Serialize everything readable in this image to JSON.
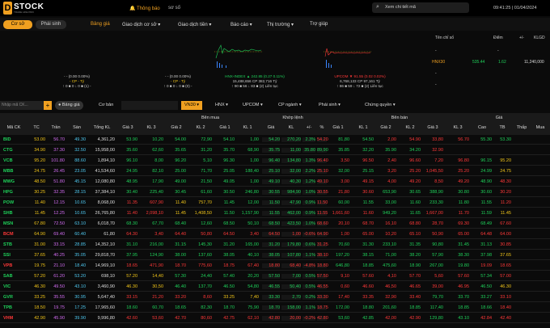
{
  "header": {
    "logo_letter": "D",
    "logo_text": "STOCK",
    "logo_sub": "TRADE LIKE PRO",
    "notice": "Thông báo",
    "notice2": "sơ số",
    "search_placeholder": "Xem chi tiết mã",
    "clock": "09:41:25 | 01/04/2024"
  },
  "nav": {
    "tab_active": "Cơ sở",
    "tab_other": "Phái sinh",
    "menus": [
      "Bảng giá",
      "Giao dịch cơ sở ▾",
      "Giao dịch tiền ▾",
      "Báo cáo ▾",
      "Thị trường ▾",
      "Trợ giúp"
    ]
  },
  "indices": [
    {
      "l1": "- - (0.00 0.00%)",
      "l2": "- CP - Tỷ",
      "l3": "↑ 0 ■ 0 ↓ 0 ■ (1) -"
    },
    {
      "l1": "- - (0.00 0.00%)",
      "l2": "- CP - Tỷ",
      "l3": "↑ 0 ■ 0 ↓ 0 ■ (0) -"
    },
    {
      "name": "HNX-INDEX",
      "l1": "HNX-INDEX ▲ 242.85 (0.27 0.11%)",
      "l2": "15,488,656 CP 382,716 Tỷ",
      "l3": "↑ 90 ■ 56 ↓ 83 ■ (2) Liên tục"
    },
    {
      "name": "UPCOM",
      "l1": "UPCOM ▼ 91.55 (0.02 0.02%)",
      "l2": "6,768,133 CP 97,161 Tỷ",
      "l3": "↑ 86 ■ 59 ↓ 72 ■ (2) Liên tục"
    }
  ],
  "side_table": {
    "headers": [
      "Tên chỉ số",
      "Điểm",
      "+/-",
      "KLGD"
    ],
    "rows": [
      {
        "name": "-",
        "point": "-",
        "chg": "-",
        "vol": "-"
      },
      {
        "name": "HNX30",
        "point": "535.44",
        "chg": "1.62",
        "vol": "11,240,000"
      },
      {
        "name": "-",
        "point": "-",
        "chg": "-",
        "vol": "-"
      },
      {
        "name": "-",
        "point": "-",
        "chg": "-",
        "vol": "-"
      }
    ]
  },
  "filterbar": {
    "input_placeholder": "Nhập mã CK...",
    "btn_board": "Bảng giá",
    "btn_basic": "Cơ bản",
    "dropdowns": [
      "VN30 ▾",
      "HNX ▾",
      "UPCOM ▾",
      "CP ngành ▾",
      "Phái sinh ▾",
      "Chứng quyền ▾"
    ]
  },
  "grid": {
    "groups": {
      "buy": "Bên mua",
      "match": "Khớp lệnh",
      "sell": "Bên bán",
      "price": "Giá"
    },
    "cols": [
      "Mã CK",
      "TC",
      "Trần",
      "Sàn",
      "Tổng KL",
      "Giá 3",
      "KL 3",
      "Giá 2",
      "KL 2",
      "Giá 1",
      "KL 1",
      "Giá",
      "KL",
      "+/-",
      "%",
      "Giá 1",
      "KL 1",
      "Giá 2",
      "KL 2",
      "Giá 3",
      "KL 3",
      "Cao",
      "TB",
      "Thấp",
      "Mua"
    ],
    "rows": [
      [
        "BID",
        "53.00",
        "56.70",
        "49.30",
        "4,361,20",
        "53.90",
        "10,20",
        "54.00",
        "72,90",
        "54.10",
        "1,00",
        "54.20",
        "270,20",
        "2.3%",
        "54.20",
        "81,80",
        "54.50",
        "2,00",
        "54.90",
        "33,80",
        "56.70",
        "55.30",
        "53.30"
      ],
      [
        "CTG",
        "34.90",
        "37.30",
        "32.50",
        "15,958,00",
        "35.60",
        "62,60",
        "35.65",
        "31,20",
        "35.70",
        "68,90",
        "35.75",
        "11,00",
        "35.80",
        "89,90",
        "35.85",
        "32,20",
        "35.90",
        "34.20",
        "32.90"
      ],
      [
        "VCB",
        "95.20",
        "101.80",
        "88.60",
        "1,894,10",
        "96.10",
        "8,00",
        "96.20",
        "5,10",
        "96.30",
        "1,00",
        "96.40",
        "134,80",
        "1.3%",
        "96.40",
        "3,50",
        "96.50",
        "2,40",
        "96.60",
        "7,20",
        "96.80",
        "96.15",
        "95.20"
      ],
      [
        "MBB",
        "24.75",
        "26.45",
        "23.05",
        "41,534,60",
        "24.95",
        "82,10",
        "25.00",
        "71,70",
        "25.05",
        "188,40",
        "25.10",
        "32,00",
        "2.2%",
        "25.10",
        "32,00",
        "25.15",
        "3,20",
        "25.20",
        "1,045,50",
        "25.20",
        "24.99",
        "24.75"
      ],
      [
        "MWG",
        "48.50",
        "51.80",
        "45.15",
        "12,080,80",
        "48.95",
        "17,90",
        "49.00",
        "21,50",
        "49.05",
        "1,00",
        "49.10",
        "40,30",
        "1.2%",
        "49.10",
        "3,00",
        "49.15",
        "4,00",
        "49.20",
        "8,50",
        "49.20",
        "48.90",
        "48.30"
      ],
      [
        "HPG",
        "30.25",
        "32.35",
        "28.15",
        "37,384,10",
        "30.40",
        "225,40",
        "30.45",
        "61,60",
        "30.50",
        "246,80",
        "30.55",
        "984,90",
        "1.0%",
        "30.55",
        "21,80",
        "30.60",
        "653,90",
        "30.65",
        "388,90",
        "30.80",
        "30.60",
        "30.20"
      ],
      [
        "POW",
        "11.40",
        "12.15",
        "10.65",
        "8,068,00",
        "11.35",
        "607,90",
        "11.40",
        "757,70",
        "11.45",
        "12,00",
        "11.50",
        "47,90",
        "0.9%",
        "11.50",
        "60,00",
        "11.55",
        "33,00",
        "11.60",
        "233,30",
        "11.80",
        "11.55",
        "11.20"
      ],
      [
        "SHB",
        "11.45",
        "12.25",
        "10.65",
        "26,765,80",
        "11.40",
        "2,098,10",
        "11.45",
        "1,408,50",
        "11.50",
        "1,157,90",
        "11.55",
        "462,00",
        "0.9%",
        "11.55",
        "1,661,60",
        "11.60",
        "949,20",
        "11.65",
        "1,667,00",
        "11.70",
        "11.59",
        "11.45"
      ],
      [
        "MSN",
        "67.80",
        "72.50",
        "63.10",
        "6,018,70",
        "68.30",
        "67,70",
        "68.40",
        "12,60",
        "68.50",
        "50,10",
        "68.50",
        "423,50",
        "1.0%",
        "68.60",
        "20,10",
        "68.70",
        "16,10",
        "68.80",
        "28,70",
        "69.30",
        "68.49",
        "67.60"
      ],
      [
        "BCM",
        "64.90",
        "69.40",
        "60.40",
        "61,80",
        "64.30",
        "3,40",
        "64.40",
        "50,80",
        "64.50",
        "3,40",
        "64.50",
        "1,00",
        "-0.6%",
        "64.90",
        "1,00",
        "65.00",
        "10,20",
        "65.10",
        "50,90",
        "65.00",
        "64.48",
        "64.00"
      ],
      [
        "STB",
        "31.00",
        "33.15",
        "28.85",
        "14,352,10",
        "31.10",
        "216,00",
        "31.15",
        "145,30",
        "31.20",
        "165,00",
        "31.20",
        "179,80",
        "0.6%",
        "31.25",
        "70,60",
        "31.30",
        "233,10",
        "31.35",
        "90,80",
        "31.45",
        "31.13",
        "30.85"
      ],
      [
        "SSI",
        "37.65",
        "40.25",
        "35.05",
        "29,818,70",
        "37.95",
        "124,90",
        "38.00",
        "137,60",
        "38.05",
        "40,10",
        "38.05",
        "107,80",
        "1.1%",
        "38.10",
        "197,20",
        "38.15",
        "71,00",
        "38.20",
        "57,90",
        "38.30",
        "37.98",
        "37.65"
      ],
      [
        "VPB",
        "19.75",
        "21.10",
        "18.40",
        "14,969,10",
        "18.65",
        "471,90",
        "18.70",
        "775,60",
        "18.75",
        "67,40",
        "18.80",
        "68,40",
        "-4.8%",
        "18.80",
        "646,80",
        "18.85",
        "475,60",
        "18.90",
        "267,00",
        "19.80",
        "19.09",
        "18.65"
      ],
      [
        "SAB",
        "57.20",
        "61.20",
        "53.20",
        "698,10",
        "57.20",
        "14,40",
        "57.30",
        "24,40",
        "57.40",
        "20,20",
        "57.50",
        "7,00",
        "0.5%",
        "57.50",
        "9,10",
        "57.60",
        "4,10",
        "57.70",
        "5,60",
        "57.60",
        "57.34",
        "57.00"
      ],
      [
        "VIC",
        "46.30",
        "49.50",
        "43.10",
        "3,460,90",
        "46.30",
        "30,50",
        "46.40",
        "137,70",
        "46.50",
        "54,80",
        "46.55",
        "50,40",
        "0.5%",
        "46.55",
        "0,60",
        "46.60",
        "46,50",
        "46.65",
        "39,00",
        "46.95",
        "46.50",
        "46.30"
      ],
      [
        "GVR",
        "33.25",
        "35.55",
        "30.95",
        "5,647,40",
        "33.15",
        "21,20",
        "33.20",
        "8,60",
        "33.25",
        "7,40",
        "33.30",
        "2,70",
        "0.2%",
        "33.30",
        "17,40",
        "33.35",
        "32,90",
        "33.40",
        "79,70",
        "33.70",
        "33.27",
        "33.10"
      ],
      [
        "TPB",
        "18.50",
        "19.75",
        "17.25",
        "17,965,60",
        "18.60",
        "60,70",
        "18.65",
        "82,30",
        "18.70",
        "75,90",
        "18.70",
        "158,00",
        "1.1%",
        "18.75",
        "172,00",
        "18.80",
        "201,60",
        "18.85",
        "117,40",
        "18.85",
        "18.66",
        "18.40"
      ],
      [
        "VHM",
        "42.90",
        "45.90",
        "39.90",
        "9,996,80",
        "42.60",
        "53,60",
        "42.70",
        "80,60",
        "42.75",
        "62,10",
        "42.80",
        "20,00",
        "-0.2%",
        "42.80",
        "53,60",
        "42.85",
        "42,00",
        "42.90",
        "129,80",
        "43.10",
        "42.84",
        "42.40"
      ]
    ]
  },
  "colors": {
    "accent": "#f0a020",
    "up": "#1fd15a",
    "down": "#ff3838",
    "ref": "#f0c419",
    "ceil": "#d06cf0",
    "floor": "#4fc8f0"
  }
}
